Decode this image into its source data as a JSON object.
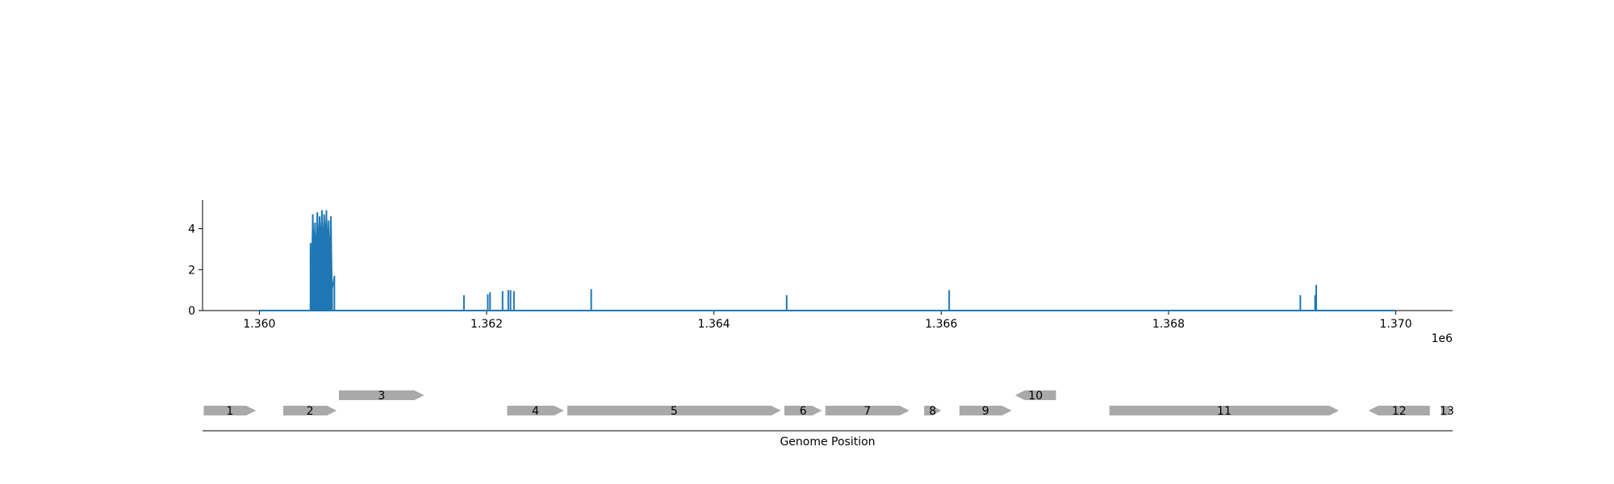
{
  "chart_data": [
    {
      "type": "line",
      "title": "",
      "xlabel": "",
      "ylabel": "",
      "xlim": [
        1359500,
        1370500
      ],
      "ylim": [
        0,
        5.4
      ],
      "x_offset_label": "1e6",
      "xticks": [
        1360000,
        1362000,
        1364000,
        1366000,
        1368000,
        1370000
      ],
      "xtick_labels": [
        "1.360",
        "1.362",
        "1.364",
        "1.366",
        "1.368",
        "1.370"
      ],
      "yticks": [
        0,
        2,
        4
      ],
      "ytick_labels": [
        "0",
        "2",
        "4"
      ],
      "line_color": "#1f77b4",
      "baseline": {
        "start": 1360000,
        "end": 1370000
      },
      "peaks": [
        {
          "x": 1360450,
          "y": 3.3
        },
        {
          "x": 1360460,
          "y": 2.2
        },
        {
          "x": 1360470,
          "y": 4.7
        },
        {
          "x": 1360480,
          "y": 3.0
        },
        {
          "x": 1360490,
          "y": 4.3
        },
        {
          "x": 1360500,
          "y": 2.6
        },
        {
          "x": 1360510,
          "y": 4.8
        },
        {
          "x": 1360520,
          "y": 3.2
        },
        {
          "x": 1360530,
          "y": 4.6
        },
        {
          "x": 1360540,
          "y": 3.4
        },
        {
          "x": 1360550,
          "y": 4.9
        },
        {
          "x": 1360560,
          "y": 3.1
        },
        {
          "x": 1360570,
          "y": 4.7
        },
        {
          "x": 1360580,
          "y": 3.5
        },
        {
          "x": 1360590,
          "y": 4.9
        },
        {
          "x": 1360600,
          "y": 3.2
        },
        {
          "x": 1360610,
          "y": 4.4
        },
        {
          "x": 1360620,
          "y": 2.4
        },
        {
          "x": 1360630,
          "y": 4.6
        },
        {
          "x": 1360640,
          "y": 1.0
        },
        {
          "x": 1360660,
          "y": 1.7
        },
        {
          "x": 1361800,
          "y": 0.75
        },
        {
          "x": 1362010,
          "y": 0.8
        },
        {
          "x": 1362030,
          "y": 0.9
        },
        {
          "x": 1362140,
          "y": 0.95
        },
        {
          "x": 1362190,
          "y": 1.0
        },
        {
          "x": 1362210,
          "y": 1.0
        },
        {
          "x": 1362240,
          "y": 0.95
        },
        {
          "x": 1362920,
          "y": 1.05
        },
        {
          "x": 1364640,
          "y": 0.75
        },
        {
          "x": 1366070,
          "y": 1.0
        },
        {
          "x": 1369160,
          "y": 0.75
        },
        {
          "x": 1369290,
          "y": 0.75
        },
        {
          "x": 1369300,
          "y": 1.25
        }
      ]
    },
    {
      "type": "gene_track",
      "xlabel": "Genome Position",
      "genes": [
        {
          "label": "1",
          "start": 1359510,
          "end": 1359970,
          "strand": "+",
          "row": 0
        },
        {
          "label": "2",
          "start": 1360210,
          "end": 1360680,
          "strand": "+",
          "row": 0
        },
        {
          "label": "3",
          "start": 1360700,
          "end": 1361450,
          "strand": "+",
          "row": 1
        },
        {
          "label": "4",
          "start": 1362180,
          "end": 1362680,
          "strand": "+",
          "row": 0
        },
        {
          "label": "5",
          "start": 1362710,
          "end": 1364590,
          "strand": "+",
          "row": 0
        },
        {
          "label": "6",
          "start": 1364620,
          "end": 1364950,
          "strand": "+",
          "row": 0
        },
        {
          "label": "7",
          "start": 1364980,
          "end": 1365720,
          "strand": "+",
          "row": 0
        },
        {
          "label": "8",
          "start": 1365850,
          "end": 1366000,
          "strand": "+",
          "row": 0
        },
        {
          "label": "9",
          "start": 1366160,
          "end": 1366620,
          "strand": "+",
          "row": 0
        },
        {
          "label": "10",
          "start": 1366650,
          "end": 1367010,
          "strand": "-",
          "row": 1
        },
        {
          "label": "11",
          "start": 1367480,
          "end": 1369500,
          "strand": "+",
          "row": 0
        },
        {
          "label": "12",
          "start": 1369760,
          "end": 1370300,
          "strand": "-",
          "row": 0
        },
        {
          "label": "13",
          "start": 1370400,
          "end": 1370500,
          "strand": "+",
          "row": 0
        }
      ],
      "gene_color": "#a9a9a9"
    }
  ]
}
